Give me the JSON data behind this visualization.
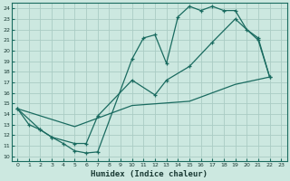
{
  "title": "",
  "xlabel": "Humidex (Indice chaleur)",
  "bg_color": "#cce8e0",
  "grid_color": "#aaccC4",
  "line_color": "#1a6b60",
  "xlim": [
    -0.5,
    23.5
  ],
  "ylim": [
    9.5,
    24.5
  ],
  "xticks": [
    0,
    1,
    2,
    3,
    4,
    5,
    6,
    7,
    8,
    9,
    10,
    11,
    12,
    13,
    14,
    15,
    16,
    17,
    18,
    19,
    20,
    21,
    22,
    23
  ],
  "yticks": [
    10,
    11,
    12,
    13,
    14,
    15,
    16,
    17,
    18,
    19,
    20,
    21,
    22,
    23,
    24
  ],
  "line1_x": [
    0,
    1,
    2,
    3,
    4,
    5,
    6,
    7,
    10,
    11,
    12,
    13,
    14,
    15,
    16,
    17,
    18,
    19,
    20,
    21,
    22
  ],
  "line1_y": [
    14.5,
    13,
    12.5,
    11.8,
    11.2,
    10.5,
    10.3,
    10.4,
    19.2,
    21.2,
    21.5,
    18.8,
    23.2,
    24.2,
    23.8,
    24.2,
    23.8,
    23.8,
    22.0,
    21.2,
    17.5
  ],
  "line2_x": [
    0,
    2,
    3,
    5,
    6,
    7,
    10,
    12,
    13,
    15,
    17,
    19,
    21,
    22
  ],
  "line2_y": [
    14.5,
    12.5,
    11.8,
    11.2,
    11.2,
    13.8,
    17.2,
    15.8,
    17.2,
    18.5,
    20.8,
    23.0,
    21.0,
    17.5
  ],
  "line3_x": [
    0,
    5,
    10,
    15,
    19,
    22
  ],
  "line3_y": [
    14.5,
    12.8,
    14.8,
    15.2,
    16.8,
    17.5
  ]
}
